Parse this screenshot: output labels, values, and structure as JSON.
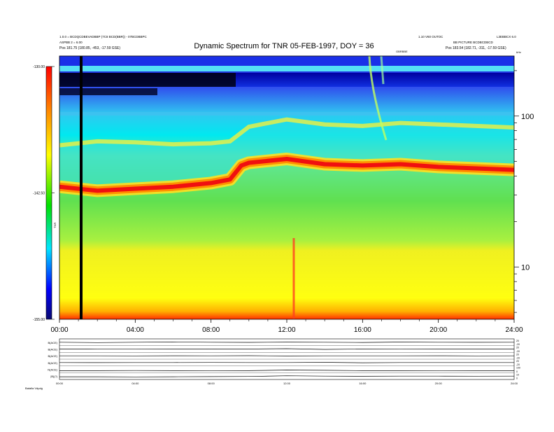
{
  "header": {
    "title": "Dynamic Spectrum for TNR 05-FEB-1997, DOY = 36",
    "left_line1": "1.0.0 = BCDQCDBEVADBBP (7C8 BCD(BBR)) - 07BCDBBPC",
    "left_line2": "ASPBB 2 = 6.00",
    "left_line3": "Pos   181.75 (180.85, -453, -17.59 GSE)",
    "right_line1": "1.10 V60 OUTOC",
    "right_line2": "BB PICTURE BCDBCDBCD",
    "right_line3": "Pos   183.54 (182.71, -311, -17.59 GSE)",
    "right_corner": "L3EBBCX 6.0",
    "event_label": "GBRBBE",
    "khz_label": "kHz",
    "footer_left": "Batalla Vdpdg"
  },
  "colorbar": {
    "colors": [
      "#0a0a70",
      "#0000ff",
      "#00e5ff",
      "#00e000",
      "#ffff00",
      "#ff8c00",
      "#ff0000"
    ],
    "ticks": [
      {
        "label": "-130.00",
        "value": -130.0
      },
      {
        "label": "-142.50",
        "value": -142.5
      },
      {
        "label": "-155.00",
        "value": -155.0
      }
    ],
    "unit_label": "TNR"
  },
  "chart_data": {
    "type": "heatmap",
    "title": "Dynamic Spectrum for TNR 05-FEB-1997, DOY = 36",
    "x_axis": {
      "label": "",
      "unit": "hours UT",
      "range": [
        0,
        24
      ],
      "tick_labels": [
        "00:00",
        "04:00",
        "08:00",
        "12:00",
        "16:00",
        "20:00",
        "24:00"
      ]
    },
    "y_axis": {
      "label": "kHz",
      "scale": "log",
      "range": [
        4.5,
        250
      ],
      "side": "right",
      "tick_labels": [
        "10",
        "100"
      ]
    },
    "color_scale": {
      "range": [
        -155.0,
        -130.0
      ],
      "tick_labels": [
        "-130.00",
        "-142.50",
        "-155.00"
      ]
    },
    "features": [
      {
        "name": "plasma line (red band)",
        "hours": [
          0,
          2,
          4,
          6,
          8,
          9,
          9.6,
          10,
          12,
          14,
          16,
          18,
          20,
          22,
          24
        ],
        "khz": [
          34,
          32,
          33,
          34,
          36,
          38,
          47,
          49,
          52,
          48,
          47,
          48,
          46,
          45,
          44
        ]
      },
      {
        "name": "upper cutoff edge",
        "hours": [
          0,
          2,
          4,
          6,
          8,
          9,
          10,
          12,
          14,
          16,
          18,
          20,
          22,
          24
        ],
        "khz": [
          64,
          68,
          67,
          65,
          66,
          68,
          85,
          95,
          88,
          86,
          90,
          88,
          86,
          84
        ]
      }
    ],
    "marker_line_hour": 1.2,
    "grid": false
  },
  "bottom_panels": {
    "labels": [
      "B(ACE)",
      "B(ACE)",
      "B(ACE)",
      "B(ACE)",
      "N(ACE)",
      "|B|(?)"
    ],
    "right_labels": [
      "-20",
      "20",
      "-20",
      "20",
      "-20",
      "20",
      "-20",
      "20",
      "0",
      "100",
      "0",
      "10"
    ],
    "x_tick_labels": [
      "00:00",
      "04:00",
      "08:00",
      "12:00",
      "16:00",
      "20:00",
      "24:00"
    ],
    "traces": [
      [
        0.5,
        0.45,
        0.5,
        0.55,
        0.5,
        0.48,
        0.52,
        0.5,
        0.47,
        0.53,
        0.5,
        0.49,
        0.5
      ],
      [
        0.5,
        0.52,
        0.48,
        0.5,
        0.51,
        0.5,
        0.55,
        0.45,
        0.5,
        0.52,
        0.5,
        0.5,
        0.51
      ],
      [
        0.5,
        0.5,
        0.49,
        0.51,
        0.5,
        0.52,
        0.48,
        0.5,
        0.5,
        0.5,
        0.51,
        0.49,
        0.5
      ],
      [
        0.5,
        0.49,
        0.5,
        0.5,
        0.51,
        0.5,
        0.5,
        0.53,
        0.47,
        0.5,
        0.5,
        0.5,
        0.5
      ],
      [
        0.3,
        0.3,
        0.32,
        0.3,
        0.31,
        0.3,
        0.4,
        0.35,
        0.3,
        0.3,
        0.31,
        0.3,
        0.3
      ],
      [
        0.4,
        0.4,
        0.38,
        0.4,
        0.42,
        0.45,
        0.55,
        0.5,
        0.48,
        0.5,
        0.5,
        0.49,
        0.5
      ]
    ]
  }
}
